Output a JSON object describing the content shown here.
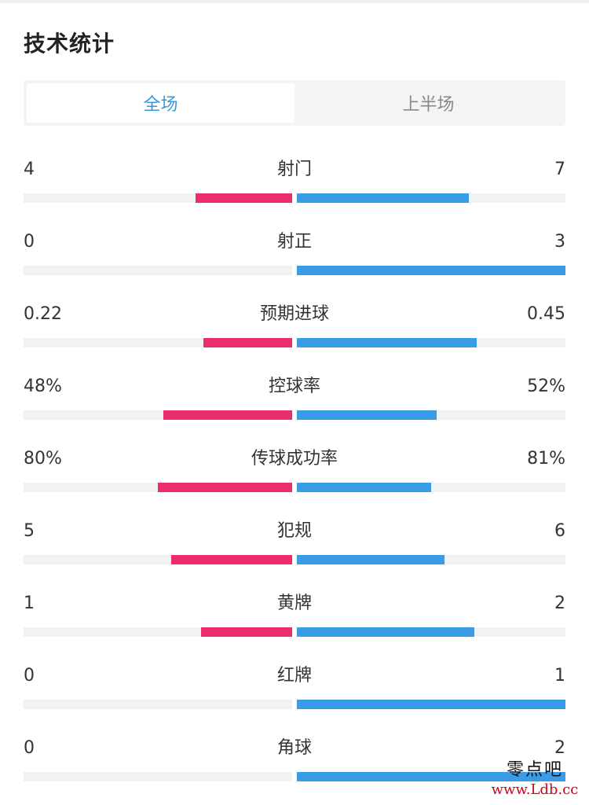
{
  "header": {
    "title": "技术统计"
  },
  "tabs": [
    {
      "label": "全场",
      "active": true
    },
    {
      "label": "上半场",
      "active": false
    }
  ],
  "colors": {
    "home": "#ee2d6c",
    "away": "#3a9be6",
    "active_tab": "#3a97d8"
  },
  "stats": [
    {
      "label": "射门",
      "home": "4",
      "away": "7",
      "home_fill": 0.36,
      "away_fill": 0.64
    },
    {
      "label": "射正",
      "home": "0",
      "away": "3",
      "home_fill": 0.0,
      "away_fill": 1.0
    },
    {
      "label": "预期进球",
      "home": "0.22",
      "away": "0.45",
      "home_fill": 0.33,
      "away_fill": 0.67
    },
    {
      "label": "控球率",
      "home": "48%",
      "away": "52%",
      "home_fill": 0.48,
      "away_fill": 0.52
    },
    {
      "label": "传球成功率",
      "home": "80%",
      "away": "81%",
      "home_fill": 0.5,
      "away_fill": 0.5
    },
    {
      "label": "犯规",
      "home": "5",
      "away": "6",
      "home_fill": 0.45,
      "away_fill": 0.55
    },
    {
      "label": "黄牌",
      "home": "1",
      "away": "2",
      "home_fill": 0.34,
      "away_fill": 0.66
    },
    {
      "label": "红牌",
      "home": "0",
      "away": "1",
      "home_fill": 0.0,
      "away_fill": 1.0
    },
    {
      "label": "角球",
      "home": "0",
      "away": "2",
      "home_fill": 0.0,
      "away_fill": 1.0
    }
  ],
  "watermark": {
    "text": "零点吧",
    "url": "www.Ldb.cc"
  }
}
